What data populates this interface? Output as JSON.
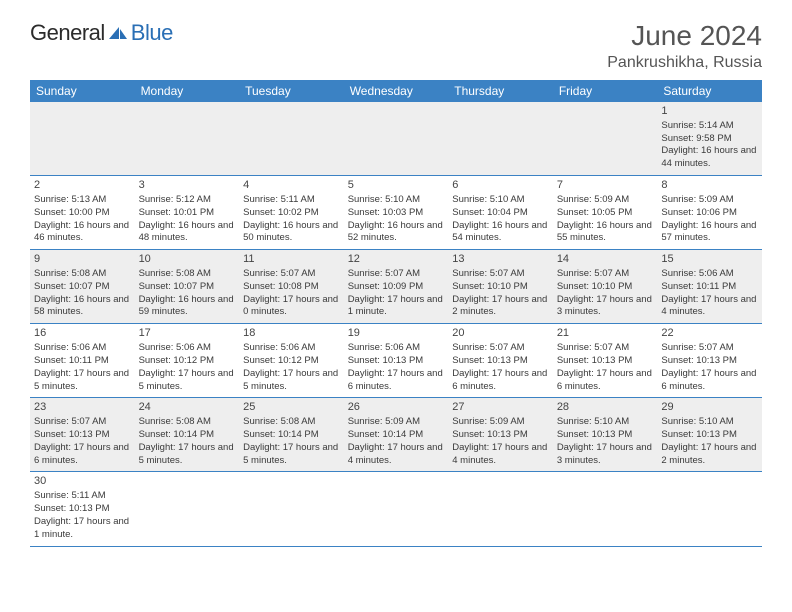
{
  "logo": {
    "text1": "General",
    "text2": "Blue"
  },
  "title": "June 2024",
  "location": "Pankrushikha, Russia",
  "colors": {
    "header_bg": "#3b82c4",
    "header_fg": "#ffffff",
    "row_alt_bg": "#eeeeee",
    "row_bg": "#ffffff",
    "border": "#3b82c4",
    "text": "#3a3a3a",
    "title": "#555555",
    "logo_blue": "#2a6fb5"
  },
  "weekdays": [
    "Sunday",
    "Monday",
    "Tuesday",
    "Wednesday",
    "Thursday",
    "Friday",
    "Saturday"
  ],
  "weeks": [
    [
      null,
      null,
      null,
      null,
      null,
      null,
      {
        "d": "1",
        "sr": "Sunrise: 5:14 AM",
        "ss": "Sunset: 9:58 PM",
        "dl": "Daylight: 16 hours and 44 minutes."
      }
    ],
    [
      {
        "d": "2",
        "sr": "Sunrise: 5:13 AM",
        "ss": "Sunset: 10:00 PM",
        "dl": "Daylight: 16 hours and 46 minutes."
      },
      {
        "d": "3",
        "sr": "Sunrise: 5:12 AM",
        "ss": "Sunset: 10:01 PM",
        "dl": "Daylight: 16 hours and 48 minutes."
      },
      {
        "d": "4",
        "sr": "Sunrise: 5:11 AM",
        "ss": "Sunset: 10:02 PM",
        "dl": "Daylight: 16 hours and 50 minutes."
      },
      {
        "d": "5",
        "sr": "Sunrise: 5:10 AM",
        "ss": "Sunset: 10:03 PM",
        "dl": "Daylight: 16 hours and 52 minutes."
      },
      {
        "d": "6",
        "sr": "Sunrise: 5:10 AM",
        "ss": "Sunset: 10:04 PM",
        "dl": "Daylight: 16 hours and 54 minutes."
      },
      {
        "d": "7",
        "sr": "Sunrise: 5:09 AM",
        "ss": "Sunset: 10:05 PM",
        "dl": "Daylight: 16 hours and 55 minutes."
      },
      {
        "d": "8",
        "sr": "Sunrise: 5:09 AM",
        "ss": "Sunset: 10:06 PM",
        "dl": "Daylight: 16 hours and 57 minutes."
      }
    ],
    [
      {
        "d": "9",
        "sr": "Sunrise: 5:08 AM",
        "ss": "Sunset: 10:07 PM",
        "dl": "Daylight: 16 hours and 58 minutes."
      },
      {
        "d": "10",
        "sr": "Sunrise: 5:08 AM",
        "ss": "Sunset: 10:07 PM",
        "dl": "Daylight: 16 hours and 59 minutes."
      },
      {
        "d": "11",
        "sr": "Sunrise: 5:07 AM",
        "ss": "Sunset: 10:08 PM",
        "dl": "Daylight: 17 hours and 0 minutes."
      },
      {
        "d": "12",
        "sr": "Sunrise: 5:07 AM",
        "ss": "Sunset: 10:09 PM",
        "dl": "Daylight: 17 hours and 1 minute."
      },
      {
        "d": "13",
        "sr": "Sunrise: 5:07 AM",
        "ss": "Sunset: 10:10 PM",
        "dl": "Daylight: 17 hours and 2 minutes."
      },
      {
        "d": "14",
        "sr": "Sunrise: 5:07 AM",
        "ss": "Sunset: 10:10 PM",
        "dl": "Daylight: 17 hours and 3 minutes."
      },
      {
        "d": "15",
        "sr": "Sunrise: 5:06 AM",
        "ss": "Sunset: 10:11 PM",
        "dl": "Daylight: 17 hours and 4 minutes."
      }
    ],
    [
      {
        "d": "16",
        "sr": "Sunrise: 5:06 AM",
        "ss": "Sunset: 10:11 PM",
        "dl": "Daylight: 17 hours and 5 minutes."
      },
      {
        "d": "17",
        "sr": "Sunrise: 5:06 AM",
        "ss": "Sunset: 10:12 PM",
        "dl": "Daylight: 17 hours and 5 minutes."
      },
      {
        "d": "18",
        "sr": "Sunrise: 5:06 AM",
        "ss": "Sunset: 10:12 PM",
        "dl": "Daylight: 17 hours and 5 minutes."
      },
      {
        "d": "19",
        "sr": "Sunrise: 5:06 AM",
        "ss": "Sunset: 10:13 PM",
        "dl": "Daylight: 17 hours and 6 minutes."
      },
      {
        "d": "20",
        "sr": "Sunrise: 5:07 AM",
        "ss": "Sunset: 10:13 PM",
        "dl": "Daylight: 17 hours and 6 minutes."
      },
      {
        "d": "21",
        "sr": "Sunrise: 5:07 AM",
        "ss": "Sunset: 10:13 PM",
        "dl": "Daylight: 17 hours and 6 minutes."
      },
      {
        "d": "22",
        "sr": "Sunrise: 5:07 AM",
        "ss": "Sunset: 10:13 PM",
        "dl": "Daylight: 17 hours and 6 minutes."
      }
    ],
    [
      {
        "d": "23",
        "sr": "Sunrise: 5:07 AM",
        "ss": "Sunset: 10:13 PM",
        "dl": "Daylight: 17 hours and 6 minutes."
      },
      {
        "d": "24",
        "sr": "Sunrise: 5:08 AM",
        "ss": "Sunset: 10:14 PM",
        "dl": "Daylight: 17 hours and 5 minutes."
      },
      {
        "d": "25",
        "sr": "Sunrise: 5:08 AM",
        "ss": "Sunset: 10:14 PM",
        "dl": "Daylight: 17 hours and 5 minutes."
      },
      {
        "d": "26",
        "sr": "Sunrise: 5:09 AM",
        "ss": "Sunset: 10:14 PM",
        "dl": "Daylight: 17 hours and 4 minutes."
      },
      {
        "d": "27",
        "sr": "Sunrise: 5:09 AM",
        "ss": "Sunset: 10:13 PM",
        "dl": "Daylight: 17 hours and 4 minutes."
      },
      {
        "d": "28",
        "sr": "Sunrise: 5:10 AM",
        "ss": "Sunset: 10:13 PM",
        "dl": "Daylight: 17 hours and 3 minutes."
      },
      {
        "d": "29",
        "sr": "Sunrise: 5:10 AM",
        "ss": "Sunset: 10:13 PM",
        "dl": "Daylight: 17 hours and 2 minutes."
      }
    ],
    [
      {
        "d": "30",
        "sr": "Sunrise: 5:11 AM",
        "ss": "Sunset: 10:13 PM",
        "dl": "Daylight: 17 hours and 1 minute."
      },
      null,
      null,
      null,
      null,
      null,
      null
    ]
  ]
}
